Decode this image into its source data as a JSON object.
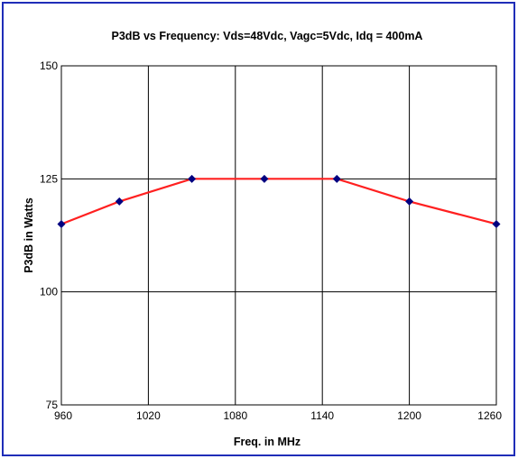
{
  "chart_data": {
    "type": "line",
    "title": "P3dB vs Frequency: Vds=48Vdc, Vagc=5Vdc, Idq = 400mA",
    "xlabel": "Freq. in MHz",
    "ylabel": "P3dB in Watts",
    "xlim": [
      960,
      1260
    ],
    "ylim": [
      75,
      150
    ],
    "x_ticks": [
      960,
      1020,
      1080,
      1140,
      1200,
      1260
    ],
    "y_ticks": [
      75,
      100,
      125,
      150
    ],
    "grid": true,
    "series": [
      {
        "x": [
          960,
          1000,
          1050,
          1100,
          1150,
          1200,
          1260
        ],
        "values": [
          115,
          120,
          125,
          125,
          125,
          120,
          115
        ],
        "line_color": "#ff2020",
        "marker_color": "#000080"
      }
    ],
    "frame_color": "#1f2db8"
  }
}
